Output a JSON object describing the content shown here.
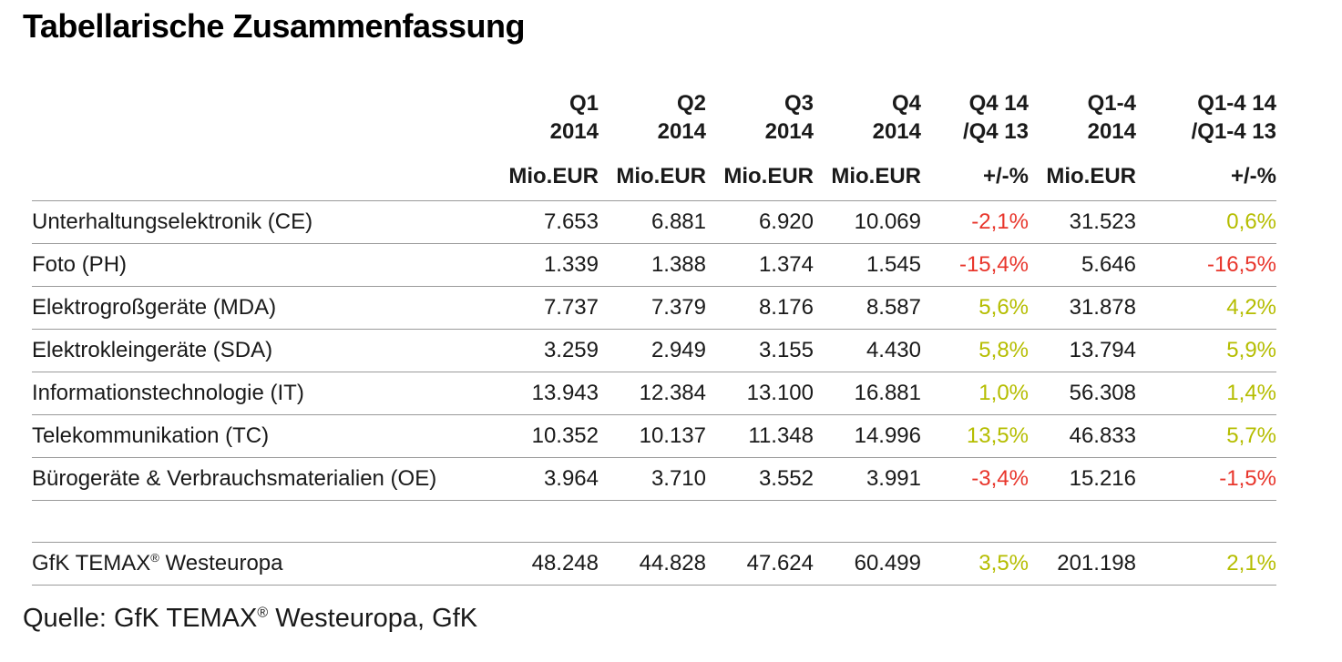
{
  "page": {
    "title": "Tabellarische Zusammenfassung",
    "source": {
      "prefix": "Quelle: GfK TEMAX",
      "reg": "®",
      "suffix": " Westeuropa, GfK"
    }
  },
  "colors": {
    "positive": "#b5bd00",
    "negative": "#e8352b",
    "line": "#9a9a9a",
    "text": "#1a1a1a"
  },
  "chart_data": {
    "type": "table",
    "title": "Tabellarische Zusammenfassung",
    "columns": [
      {
        "line1": "Q1",
        "line2": "2014",
        "unit": "Mio.EUR"
      },
      {
        "line1": "Q2",
        "line2": "2014",
        "unit": "Mio.EUR"
      },
      {
        "line1": "Q3",
        "line2": "2014",
        "unit": "Mio.EUR"
      },
      {
        "line1": "Q4",
        "line2": "2014",
        "unit": "Mio.EUR"
      },
      {
        "line1": "Q4 14",
        "line2": "/Q4 13",
        "unit": "+/-%"
      },
      {
        "line1": "Q1-4",
        "line2": "2014",
        "unit": "Mio.EUR"
      },
      {
        "line1": "Q1-4 14",
        "line2": "/Q1-4 13",
        "unit": "+/-%"
      }
    ],
    "rows": [
      {
        "label": "Unterhaltungselektronik (CE)",
        "q1": "7.653",
        "q2": "6.881",
        "q3": "6.920",
        "q4": "10.069",
        "q4_vs_q4_13": "-2,1%",
        "q1_4": "31.523",
        "q1_4_vs_13": "0,6%"
      },
      {
        "label": "Foto (PH)",
        "q1": "1.339",
        "q2": "1.388",
        "q3": "1.374",
        "q4": "1.545",
        "q4_vs_q4_13": "-15,4%",
        "q1_4": "5.646",
        "q1_4_vs_13": "-16,5%"
      },
      {
        "label": "Elektrogroßgeräte (MDA)",
        "q1": "7.737",
        "q2": "7.379",
        "q3": "8.176",
        "q4": "8.587",
        "q4_vs_q4_13": "5,6%",
        "q1_4": "31.878",
        "q1_4_vs_13": "4,2%"
      },
      {
        "label": "Elektrokleingeräte (SDA)",
        "q1": "3.259",
        "q2": "2.949",
        "q3": "3.155",
        "q4": "4.430",
        "q4_vs_q4_13": "5,8%",
        "q1_4": "13.794",
        "q1_4_vs_13": "5,9%"
      },
      {
        "label": "Informationstechnologie (IT)",
        "q1": "13.943",
        "q2": "12.384",
        "q3": "13.100",
        "q4": "16.881",
        "q4_vs_q4_13": "1,0%",
        "q1_4": "56.308",
        "q1_4_vs_13": "1,4%"
      },
      {
        "label": "Telekommunikation (TC)",
        "q1": "10.352",
        "q2": "10.137",
        "q3": "11.348",
        "q4": "14.996",
        "q4_vs_q4_13": "13,5%",
        "q1_4": "46.833",
        "q1_4_vs_13": "5,7%"
      },
      {
        "label": "Bürogeräte & Verbrauchsmaterialien (OE)",
        "q1": "3.964",
        "q2": "3.710",
        "q3": "3.552",
        "q4": "3.991",
        "q4_vs_q4_13": "-3,4%",
        "q1_4": "15.216",
        "q1_4_vs_13": "-1,5%"
      }
    ],
    "total_row": {
      "label_prefix": "GfK TEMAX",
      "label_reg": "®",
      "label_suffix": " Westeuropa",
      "q1": "48.248",
      "q2": "44.828",
      "q3": "47.624",
      "q4": "60.499",
      "q4_vs_q4_13": "3,5%",
      "q1_4": "201.198",
      "q1_4_vs_13": "2,1%"
    }
  }
}
